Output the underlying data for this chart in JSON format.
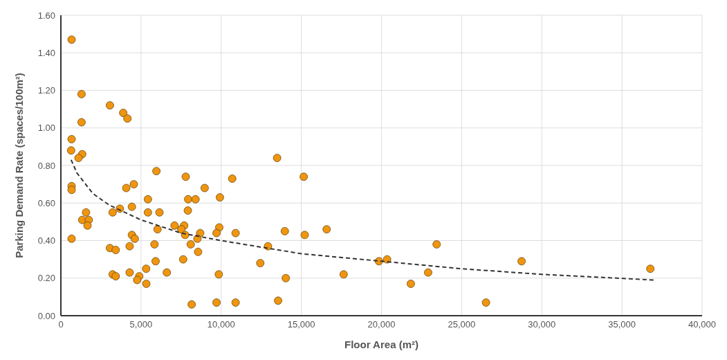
{
  "chart_data": {
    "type": "scatter",
    "xlabel": "Floor Area (m²)",
    "ylabel": "Parking Demand Rate (spaces/100m²)",
    "xlim": [
      0,
      40000
    ],
    "xticks": [
      0,
      {
        "value": 5000,
        "label": "5,000"
      },
      {
        "value": 10000,
        "label": "10,000"
      },
      {
        "value": 15000,
        "label": "15,000"
      },
      {
        "value": 20000,
        "label": "20,000"
      },
      {
        "value": 25000,
        "label": "25,000"
      },
      {
        "value": 30000,
        "label": "30,000"
      },
      {
        "value": 35000,
        "label": "35,000"
      },
      {
        "value": 40000,
        "label": "40,000"
      }
    ],
    "ylim": [
      0,
      1.6
    ],
    "yticks": [
      {
        "value": 0,
        "label": "0.00"
      },
      {
        "value": 0.2,
        "label": "0.20"
      },
      {
        "value": 0.4,
        "label": "0.40"
      },
      {
        "value": 0.6,
        "label": "0.60"
      },
      {
        "value": 0.8,
        "label": "0.80"
      },
      {
        "value": 1,
        "label": "1.00"
      },
      {
        "value": 1.2,
        "label": "1.20"
      },
      {
        "value": 1.4,
        "label": "1.40"
      },
      {
        "value": 1.6,
        "label": "1.60"
      }
    ],
    "grid": true,
    "series": [
      {
        "color": "#f0950f",
        "marker": "circle",
        "x": [
          670,
          1290,
          3060,
          3890,
          4150,
          1290,
          670,
          640,
          1330,
          1100,
          5960,
          7790,
          10690,
          670,
          670,
          4080,
          4550,
          8970,
          5430,
          7940,
          8400,
          9920,
          1570,
          3230,
          3680,
          4430,
          5430,
          6150,
          7920,
          1330,
          1740,
          1660,
          6030,
          7090,
          7690,
          7510,
          8690,
          9880,
          9710,
          10900,
          7750,
          8520,
          670,
          4430,
          4610,
          8100,
          12920,
          3060,
          3420,
          4290,
          5840,
          8560,
          7630,
          5910,
          12440,
          3230,
          3420,
          4290,
          5320,
          6610,
          9850,
          4890,
          4760,
          5330,
          8160,
          9710,
          10900,
          13490,
          15150,
          13970,
          15210,
          16580,
          14030,
          13550,
          17640,
          19840,
          20350,
          23440,
          21830,
          22910,
          26520,
          28740,
          36770
        ],
        "values": [
          1.47,
          1.18,
          1.12,
          1.08,
          1.05,
          1.03,
          0.94,
          0.88,
          0.86,
          0.84,
          0.77,
          0.74,
          0.73,
          0.69,
          0.67,
          0.68,
          0.7,
          0.68,
          0.62,
          0.62,
          0.62,
          0.63,
          0.55,
          0.55,
          0.57,
          0.58,
          0.55,
          0.55,
          0.56,
          0.51,
          0.51,
          0.48,
          0.46,
          0.48,
          0.48,
          0.46,
          0.44,
          0.47,
          0.44,
          0.44,
          0.43,
          0.41,
          0.41,
          0.43,
          0.41,
          0.38,
          0.37,
          0.36,
          0.35,
          0.37,
          0.38,
          0.34,
          0.3,
          0.29,
          0.28,
          0.22,
          0.21,
          0.23,
          0.25,
          0.23,
          0.22,
          0.21,
          0.19,
          0.17,
          0.06,
          0.07,
          0.07,
          0.84,
          0.74,
          0.45,
          0.43,
          0.46,
          0.2,
          0.08,
          0.22,
          0.29,
          0.3,
          0.38,
          0.17,
          0.23,
          0.07,
          0.29,
          0.25
        ]
      },
      {
        "type": "line",
        "color": "#333333",
        "marker": "none",
        "line_style": "dashed",
        "x": [
          640,
          1000,
          2000,
          3000,
          5000,
          7500,
          10000,
          15000,
          20000,
          25000,
          30000,
          37000
        ],
        "values": [
          0.83,
          0.76,
          0.65,
          0.59,
          0.51,
          0.44,
          0.4,
          0.33,
          0.29,
          0.25,
          0.22,
          0.19
        ]
      }
    ]
  }
}
